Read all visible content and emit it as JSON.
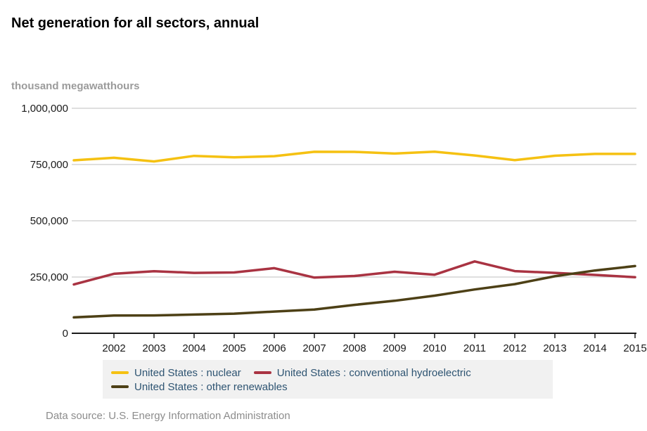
{
  "title": "Net generation for all sectors, annual",
  "unit_label": "thousand megawatthours",
  "source_text": "Data source: U.S. Energy Information Administration",
  "colors": {
    "gridline": "#cccccc",
    "axis": "#1a1a1a",
    "tick_label": "#1a1a1a",
    "legend_text": "#2e5472",
    "legend_background": "#f1f1f1"
  },
  "chart_data": {
    "type": "line",
    "title": "Net generation for all sectors, annual",
    "ylabel": "thousand megawatthours",
    "xlabel": "",
    "x": [
      2001,
      2002,
      2003,
      2004,
      2005,
      2006,
      2007,
      2008,
      2009,
      2010,
      2011,
      2012,
      2013,
      2014,
      2015
    ],
    "xtick_labels": [
      "2002",
      "2003",
      "2004",
      "2005",
      "2006",
      "2007",
      "2008",
      "2009",
      "2010",
      "2011",
      "2012",
      "2013",
      "2014",
      "2015"
    ],
    "ylim": [
      0,
      1000000
    ],
    "yticks": [
      0,
      250000,
      500000,
      750000,
      1000000
    ],
    "ytick_labels": [
      "0",
      "250,000",
      "500,000",
      "750,000",
      "1,000,000"
    ],
    "grid": "horizontal",
    "legend_position": "bottom",
    "series": [
      {
        "name": "United States : nuclear",
        "color": "#f5c112",
        "values": [
          768826,
          780064,
          763733,
          788528,
          781986,
          787219,
          806425,
          806208,
          798855,
          806968,
          790204,
          769331,
          789017,
          797166,
          797178
        ]
      },
      {
        "name": "United States : conventional hydroelectric",
        "color": "#a93342",
        "values": [
          216961,
          264329,
          275806,
          268417,
          270321,
          289246,
          247510,
          254831,
          273445,
          260203,
          319355,
          276240,
          268565,
          259367,
          249080
        ]
      },
      {
        "name": "United States : other renewables",
        "color": "#4d4016",
        "values": [
          70769,
          79109,
          79487,
          83067,
          87329,
          96525,
          105238,
          126212,
          144279,
          167173,
          194796,
          218333,
          253508,
          279188,
          298605
        ]
      }
    ]
  }
}
